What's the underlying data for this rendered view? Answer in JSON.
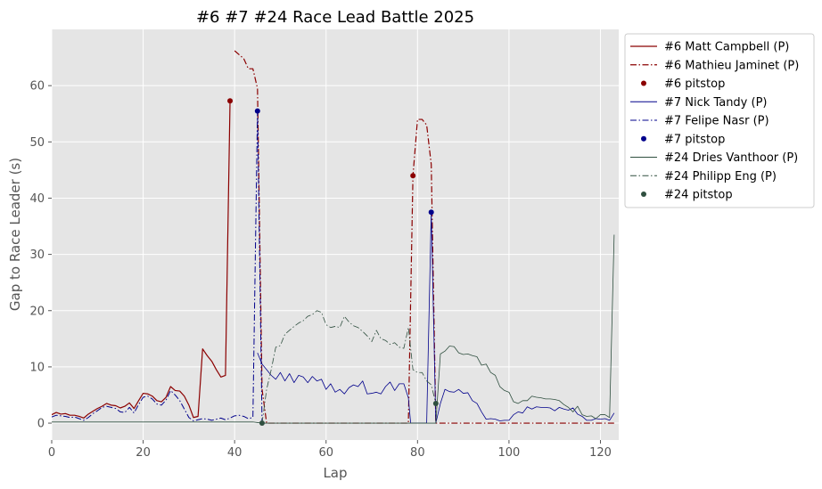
{
  "chart_data": {
    "type": "line",
    "title": "#6 #7 #24 Race Lead Battle 2025",
    "xlabel": "Lap",
    "ylabel": "Gap to Race Leader (s)",
    "xlim": [
      0,
      124
    ],
    "ylim": [
      -3,
      70
    ],
    "x_ticks": [
      0,
      20,
      40,
      60,
      80,
      100,
      120
    ],
    "y_ticks": [
      0,
      10,
      20,
      30,
      40,
      50,
      60
    ],
    "grid": true,
    "legend_position": "outside-right-top",
    "series": [
      {
        "name": "#6 Matt Campbell (P)",
        "kind": "line",
        "style": "solid",
        "color": "#8b0000",
        "width": 1.2,
        "points": [
          [
            0,
            1.5
          ],
          [
            1,
            1.9
          ],
          [
            2,
            1.6
          ],
          [
            3,
            1.7
          ],
          [
            4,
            1.4
          ],
          [
            5,
            1.4
          ],
          [
            6,
            1.2
          ],
          [
            7,
            0.9
          ],
          [
            8,
            1.6
          ],
          [
            9,
            2.1
          ],
          [
            10,
            2.6
          ],
          [
            11,
            3.0
          ],
          [
            12,
            3.5
          ],
          [
            13,
            3.2
          ],
          [
            14,
            3.1
          ],
          [
            15,
            2.7
          ],
          [
            16,
            3.0
          ],
          [
            17,
            3.6
          ],
          [
            18,
            2.6
          ],
          [
            19,
            4.0
          ],
          [
            20,
            5.3
          ],
          [
            21,
            5.2
          ],
          [
            22,
            4.8
          ],
          [
            23,
            4.0
          ],
          [
            24,
            3.8
          ],
          [
            25,
            4.6
          ],
          [
            26,
            6.5
          ],
          [
            27,
            5.8
          ],
          [
            28,
            5.7
          ],
          [
            29,
            4.8
          ],
          [
            30,
            3.2
          ],
          [
            31,
            1.0
          ],
          [
            32,
            1.2
          ],
          [
            33,
            13.2
          ],
          [
            34,
            12.0
          ],
          [
            35,
            11.0
          ],
          [
            36,
            9.5
          ],
          [
            37,
            8.2
          ],
          [
            38,
            8.5
          ],
          [
            39,
            57.3
          ]
        ]
      },
      {
        "name": "#6 Mathieu Jaminet (P)",
        "kind": "line",
        "style": "dashdot",
        "color": "#8b0000",
        "width": 1.2,
        "points": [
          [
            40,
            66.2
          ],
          [
            41,
            65.5
          ],
          [
            42,
            64.8
          ],
          [
            43,
            63.0
          ],
          [
            44,
            63.0
          ],
          [
            45,
            59.5
          ],
          [
            46,
            6.0
          ],
          [
            47,
            0
          ],
          [
            48,
            0
          ],
          [
            50,
            0
          ],
          [
            55,
            0
          ],
          [
            60,
            0
          ],
          [
            65,
            0
          ],
          [
            70,
            0
          ],
          [
            75,
            0
          ],
          [
            78,
            0
          ],
          [
            79,
            44.0
          ],
          [
            80,
            54.0
          ],
          [
            81,
            54.0
          ],
          [
            82,
            53.0
          ],
          [
            83,
            46.0
          ],
          [
            84,
            0
          ],
          [
            85,
            0
          ],
          [
            90,
            0
          ],
          [
            100,
            0
          ],
          [
            110,
            0
          ],
          [
            120,
            0
          ],
          [
            123,
            0
          ]
        ]
      },
      {
        "name": "#6 pitstop",
        "kind": "points",
        "color": "#8b0000",
        "points": [
          [
            39,
            57.3
          ],
          [
            79,
            44.0
          ]
        ]
      },
      {
        "name": "#7 Nick Tandy (P)",
        "kind": "line",
        "style": "solid",
        "color": "#00008b",
        "width": 0.8,
        "points": [
          [
            45,
            12.5
          ],
          [
            46,
            10.5
          ],
          [
            47,
            9.5
          ],
          [
            48,
            8.5
          ],
          [
            49,
            7.8
          ],
          [
            50,
            9.0
          ],
          [
            51,
            7.5
          ],
          [
            52,
            8.8
          ],
          [
            53,
            7.2
          ],
          [
            54,
            8.5
          ],
          [
            55,
            8.2
          ],
          [
            56,
            7.2
          ],
          [
            57,
            8.3
          ],
          [
            58,
            7.5
          ],
          [
            59,
            7.8
          ],
          [
            60,
            6.0
          ],
          [
            61,
            7.0
          ],
          [
            62,
            5.5
          ],
          [
            63,
            6.0
          ],
          [
            64,
            5.2
          ],
          [
            65,
            6.3
          ],
          [
            66,
            6.8
          ],
          [
            67,
            6.5
          ],
          [
            68,
            7.5
          ],
          [
            69,
            5.2
          ],
          [
            70,
            5.3
          ],
          [
            71,
            5.5
          ],
          [
            72,
            5.2
          ],
          [
            73,
            6.5
          ],
          [
            74,
            7.3
          ],
          [
            75,
            5.8
          ],
          [
            76,
            7.0
          ],
          [
            77,
            7.0
          ],
          [
            78,
            4.5
          ],
          [
            78.5,
            0
          ],
          [
            82,
            0
          ],
          [
            83,
            37.5
          ],
          [
            84,
            0
          ],
          [
            85,
            3.5
          ],
          [
            86,
            6.0
          ],
          [
            87,
            5.6
          ],
          [
            88,
            5.5
          ],
          [
            89,
            6.0
          ],
          [
            90,
            5.3
          ],
          [
            91,
            5.4
          ],
          [
            92,
            4.0
          ],
          [
            93,
            3.5
          ],
          [
            94,
            2.0
          ],
          [
            95,
            0.7
          ],
          [
            96,
            0.8
          ],
          [
            97,
            0.7
          ],
          [
            98,
            0.4
          ],
          [
            99,
            0.5
          ],
          [
            100,
            0.5
          ],
          [
            101,
            1.5
          ],
          [
            102,
            2.0
          ],
          [
            103,
            1.8
          ],
          [
            104,
            2.9
          ],
          [
            105,
            2.5
          ],
          [
            106,
            2.9
          ],
          [
            107,
            2.8
          ],
          [
            108,
            2.8
          ],
          [
            109,
            2.7
          ],
          [
            110,
            2.2
          ],
          [
            111,
            2.8
          ],
          [
            112,
            2.5
          ],
          [
            113,
            2.3
          ],
          [
            114,
            2.7
          ],
          [
            115,
            1.6
          ],
          [
            116,
            1.2
          ],
          [
            117,
            0.5
          ],
          [
            118,
            0.5
          ],
          [
            119,
            0.8
          ],
          [
            120,
            0.7
          ],
          [
            121,
            0.8
          ],
          [
            122,
            0.5
          ],
          [
            123,
            1.8
          ]
        ]
      },
      {
        "name": "#7 Felipe Nasr (P)",
        "kind": "line",
        "style": "dashdot",
        "color": "#00008b",
        "width": 1.0,
        "points": [
          [
            0,
            1.1
          ],
          [
            1,
            1.4
          ],
          [
            2,
            1.3
          ],
          [
            3,
            1.2
          ],
          [
            4,
            1.0
          ],
          [
            5,
            1.1
          ],
          [
            6,
            0.8
          ],
          [
            7,
            0.5
          ],
          [
            8,
            1.0
          ],
          [
            9,
            1.7
          ],
          [
            10,
            2.2
          ],
          [
            11,
            2.8
          ],
          [
            12,
            3.0
          ],
          [
            13,
            2.8
          ],
          [
            14,
            2.6
          ],
          [
            15,
            2.0
          ],
          [
            16,
            1.9
          ],
          [
            17,
            2.8
          ],
          [
            18,
            1.8
          ],
          [
            19,
            3.3
          ],
          [
            20,
            4.6
          ],
          [
            21,
            4.8
          ],
          [
            22,
            4.3
          ],
          [
            23,
            3.4
          ],
          [
            24,
            3.2
          ],
          [
            25,
            4.1
          ],
          [
            26,
            5.8
          ],
          [
            27,
            5.0
          ],
          [
            28,
            4.0
          ],
          [
            29,
            2.5
          ],
          [
            30,
            1.0
          ],
          [
            31,
            0.4
          ],
          [
            32,
            0.6
          ],
          [
            33,
            0.8
          ],
          [
            34,
            0.7
          ],
          [
            35,
            0.5
          ],
          [
            36,
            0.7
          ],
          [
            37,
            0.9
          ],
          [
            38,
            0.6
          ],
          [
            39,
            0.9
          ],
          [
            40,
            1.3
          ],
          [
            41,
            1.4
          ],
          [
            42,
            1.2
          ],
          [
            43,
            0.8
          ],
          [
            44,
            1.0
          ],
          [
            45,
            55.5
          ],
          [
            46,
            0
          ]
        ]
      },
      {
        "name": "#7 pitstop",
        "kind": "points",
        "color": "#00008b",
        "points": [
          [
            45,
            55.5
          ],
          [
            83,
            37.5
          ]
        ]
      },
      {
        "name": "#24 Dries Vanthoor (P)",
        "kind": "line",
        "style": "solid",
        "color": "#2f4f3f",
        "width": 0.8,
        "points": [
          [
            0,
            0.2
          ],
          [
            10,
            0.2
          ],
          [
            20,
            0.2
          ],
          [
            30,
            0.2
          ],
          [
            40,
            0.2
          ],
          [
            44,
            0.2
          ],
          [
            45,
            0.1
          ],
          [
            46,
            0
          ],
          [
            50,
            0
          ],
          [
            55,
            0
          ],
          [
            60,
            0
          ],
          [
            65,
            0
          ],
          [
            70,
            0
          ],
          [
            75,
            0
          ],
          [
            78,
            0
          ],
          [
            84,
            0
          ],
          [
            85,
            12.3
          ],
          [
            86,
            12.8
          ],
          [
            87,
            13.7
          ],
          [
            88,
            13.6
          ],
          [
            89,
            12.5
          ],
          [
            90,
            12.2
          ],
          [
            91,
            12.3
          ],
          [
            92,
            12.0
          ],
          [
            93,
            11.8
          ],
          [
            94,
            10.3
          ],
          [
            95,
            10.5
          ],
          [
            96,
            9.0
          ],
          [
            97,
            8.5
          ],
          [
            98,
            6.5
          ],
          [
            99,
            5.8
          ],
          [
            100,
            5.5
          ],
          [
            101,
            3.8
          ],
          [
            102,
            3.5
          ],
          [
            103,
            4.0
          ],
          [
            104,
            4.0
          ],
          [
            105,
            4.8
          ],
          [
            106,
            4.6
          ],
          [
            107,
            4.5
          ],
          [
            108,
            4.3
          ],
          [
            109,
            4.3
          ],
          [
            110,
            4.2
          ],
          [
            111,
            4.0
          ],
          [
            112,
            3.3
          ],
          [
            113,
            2.8
          ],
          [
            114,
            2.0
          ],
          [
            115,
            3.0
          ],
          [
            116,
            1.5
          ],
          [
            117,
            1.2
          ],
          [
            118,
            1.3
          ],
          [
            119,
            0.8
          ],
          [
            120,
            1.5
          ],
          [
            121,
            1.5
          ],
          [
            122,
            1.0
          ],
          [
            123,
            33.5
          ]
        ]
      },
      {
        "name": "#24 Philipp Eng (P)",
        "kind": "line",
        "style": "dashdot",
        "color": "#2f4f3f",
        "width": 0.8,
        "points": [
          [
            46,
            0
          ],
          [
            47,
            6.0
          ],
          [
            48,
            9.5
          ],
          [
            49,
            13.5
          ],
          [
            50,
            13.8
          ],
          [
            51,
            15.8
          ],
          [
            52,
            16.5
          ],
          [
            53,
            17.2
          ],
          [
            54,
            17.8
          ],
          [
            55,
            18.2
          ],
          [
            56,
            19.0
          ],
          [
            57,
            19.3
          ],
          [
            58,
            20.0
          ],
          [
            59,
            19.7
          ],
          [
            60,
            17.5
          ],
          [
            61,
            17.0
          ],
          [
            62,
            17.2
          ],
          [
            63,
            17.0
          ],
          [
            64,
            19.0
          ],
          [
            65,
            18.0
          ],
          [
            66,
            17.3
          ],
          [
            67,
            17.0
          ],
          [
            68,
            16.3
          ],
          [
            69,
            15.5
          ],
          [
            70,
            14.5
          ],
          [
            71,
            16.5
          ],
          [
            72,
            15.0
          ],
          [
            73,
            14.7
          ],
          [
            74,
            14.0
          ],
          [
            75,
            14.3
          ],
          [
            76,
            13.5
          ],
          [
            77,
            13.3
          ],
          [
            78,
            17.0
          ],
          [
            79,
            9.5
          ],
          [
            80,
            9.0
          ],
          [
            81,
            9.0
          ],
          [
            82,
            7.5
          ],
          [
            83,
            6.8
          ],
          [
            84,
            3.5
          ]
        ]
      },
      {
        "name": "#24 pitstop",
        "kind": "points",
        "color": "#2f4f3f",
        "points": [
          [
            46,
            0
          ],
          [
            84,
            3.5
          ]
        ]
      }
    ]
  }
}
